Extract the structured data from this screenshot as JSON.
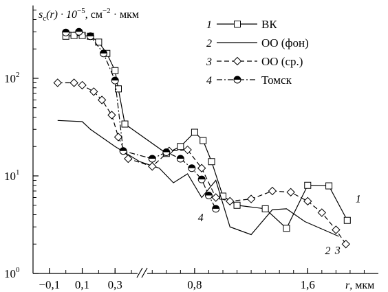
{
  "chart_data": {
    "type": "line",
    "title": "",
    "ylabel_parts": {
      "pre": "s",
      "sub": "c",
      "mid": "(r) · 10",
      "sup1": "−5",
      "post": ", см",
      "sup2": "−2",
      "end": " · мкм"
    },
    "xlabel_parts": {
      "var": "r",
      "unit": ", мкм"
    },
    "x_scale": "broken-linear",
    "x_segments": [
      {
        "range": [
          -0.2,
          0.45
        ]
      },
      {
        "range": [
          0.45,
          2.1
        ]
      }
    ],
    "xlim": [
      -0.2,
      2.1
    ],
    "x_ticks": [
      -0.1,
      0.1,
      0.3,
      0.8,
      1.6
    ],
    "x_tick_labels": [
      "−0,1",
      "0,1",
      "0,3",
      "0,8",
      "1,6"
    ],
    "y_scale": "log",
    "ylim": [
      1,
      500
    ],
    "y_ticks": [
      1,
      10,
      100
    ],
    "y_tick_labels": [
      {
        "base": "10",
        "exp": "0"
      },
      {
        "base": "10",
        "exp": "1"
      },
      {
        "base": "10",
        "exp": "2"
      }
    ],
    "legend_position": "top-right",
    "series": [
      {
        "name": "ВК",
        "number": "1",
        "marker": "square",
        "line": "solid",
        "points": [
          [
            0.0,
            270
          ],
          [
            0.05,
            275
          ],
          [
            0.1,
            275
          ],
          [
            0.15,
            270
          ],
          [
            0.2,
            235
          ],
          [
            0.25,
            180
          ],
          [
            0.3,
            120
          ],
          [
            0.32,
            78
          ],
          [
            0.36,
            34
          ],
          [
            0.6,
            17
          ],
          [
            0.7,
            20
          ],
          [
            0.8,
            28
          ],
          [
            0.86,
            23
          ],
          [
            0.92,
            14
          ],
          [
            1.0,
            6.2
          ],
          [
            1.1,
            5
          ],
          [
            1.3,
            4.6
          ],
          [
            1.45,
            2.9
          ],
          [
            1.6,
            8
          ],
          [
            1.75,
            7.9
          ],
          [
            1.88,
            3.5
          ]
        ],
        "end_label": "1"
      },
      {
        "name": "ОО (фон)",
        "number": "2",
        "marker": "none",
        "line": "solid",
        "points": [
          [
            -0.05,
            37
          ],
          [
            0.1,
            36
          ],
          [
            0.15,
            30
          ],
          [
            0.3,
            20
          ],
          [
            0.45,
            14
          ],
          [
            0.55,
            12
          ],
          [
            0.65,
            8.5
          ],
          [
            0.75,
            10.5
          ],
          [
            0.85,
            6
          ],
          [
            0.95,
            9
          ],
          [
            1.05,
            3
          ],
          [
            1.2,
            2.5
          ],
          [
            1.35,
            4.5
          ],
          [
            1.45,
            4.6
          ],
          [
            1.58,
            3.4
          ],
          [
            1.82,
            2.4
          ]
        ],
        "end_label": "2"
      },
      {
        "name": "ОО (ср.)",
        "number": "3",
        "marker": "diamond",
        "line": "dashed",
        "points": [
          [
            -0.05,
            90
          ],
          [
            0.05,
            90
          ],
          [
            0.1,
            85
          ],
          [
            0.17,
            73
          ],
          [
            0.22,
            60
          ],
          [
            0.28,
            42
          ],
          [
            0.32,
            25
          ],
          [
            0.38,
            15
          ],
          [
            0.5,
            12.5
          ],
          [
            0.62,
            18
          ],
          [
            0.75,
            18.5
          ],
          [
            0.85,
            12
          ],
          [
            0.95,
            6
          ],
          [
            1.05,
            5.5
          ],
          [
            1.2,
            5.8
          ],
          [
            1.35,
            7
          ],
          [
            1.48,
            6.8
          ],
          [
            1.6,
            5.5
          ],
          [
            1.7,
            4.2
          ],
          [
            1.8,
            2.8
          ],
          [
            1.87,
            2
          ]
        ],
        "end_label": "3"
      },
      {
        "name": "Томск",
        "number": "4",
        "marker": "half-circle",
        "line": "dash-dot",
        "points": [
          [
            0.0,
            295
          ],
          [
            0.08,
            300
          ],
          [
            0.15,
            270
          ],
          [
            0.23,
            180
          ],
          [
            0.3,
            95
          ],
          [
            0.35,
            18
          ],
          [
            0.5,
            15
          ],
          [
            0.6,
            17.5
          ],
          [
            0.7,
            15
          ],
          [
            0.78,
            12
          ],
          [
            0.85,
            9.2
          ],
          [
            0.9,
            6.3
          ],
          [
            0.95,
            4.6
          ]
        ],
        "end_label": "4"
      }
    ]
  }
}
